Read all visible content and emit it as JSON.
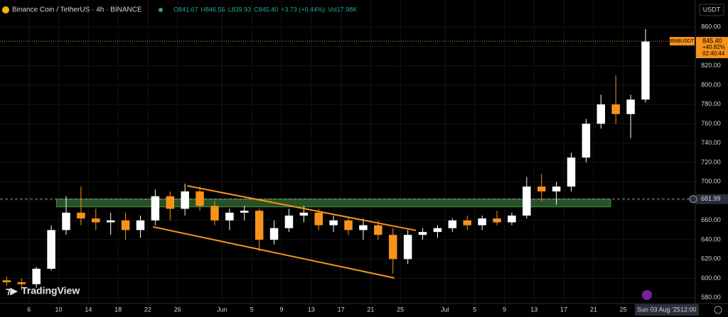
{
  "chart_data": {
    "type": "candlestick",
    "title": "Binance Coin / TetherUS · 4h · BINANCE",
    "legend_values": [
      "O841.67",
      "H846.56",
      "L839.93",
      "C845.40",
      "+3.73 (+0.44%)",
      "Vol17.98K"
    ],
    "currency": "USDT",
    "brand": "TradingView",
    "symbol": "BNBUSDT",
    "last_price": {
      "value": 845.4,
      "label": "845.40"
    },
    "change": "+40.82%",
    "countdown": "02:40:44",
    "level": {
      "value": 681.99,
      "label": "681.99"
    },
    "crosshair_date": "Sun 03 Aug '25",
    "crosshair_time": "12:00",
    "up_color": "#ffffff",
    "down_color": "#f7931a",
    "zone": {
      "x": [
        9.7,
        84.3
      ],
      "y": [
        674,
        682
      ],
      "color": "#2e5e2a"
    },
    "channel": {
      "color": "#f7931a",
      "lines": [
        {
          "x": [
            27.3,
            58.1
          ],
          "y": [
            695.8,
            649.6
          ]
        },
        {
          "x": [
            22.7,
            55.2
          ],
          "y": [
            653.3,
            600.4
          ]
        }
      ]
    },
    "x": [
      3,
      5,
      7,
      9,
      11,
      13,
      15,
      17,
      19,
      21,
      23,
      25,
      27,
      29,
      31,
      33,
      35,
      37,
      39,
      41,
      43,
      45,
      47,
      49,
      51,
      53,
      55,
      57,
      59,
      61,
      63,
      65,
      67,
      69,
      71,
      73,
      75,
      77,
      79,
      81,
      83,
      85,
      87,
      89
    ],
    "open": [
      598,
      596,
      594,
      610,
      650,
      668,
      662,
      658,
      660,
      650,
      660,
      685,
      672,
      690,
      675,
      660,
      668,
      670,
      640,
      652,
      665,
      668,
      655,
      660,
      650,
      655,
      645,
      620,
      645,
      648,
      652,
      660,
      655,
      662,
      658,
      665,
      695,
      690,
      695,
      725,
      760,
      780,
      770,
      785
    ],
    "high": [
      602,
      600,
      612,
      655,
      685,
      695,
      672,
      668,
      668,
      665,
      692,
      690,
      698,
      695,
      680,
      672,
      675,
      672,
      660,
      672,
      675,
      672,
      665,
      664,
      662,
      660,
      652,
      650,
      652,
      655,
      662,
      665,
      665,
      670,
      668,
      705,
      708,
      700,
      730,
      765,
      790,
      810,
      790,
      858
    ],
    "low": [
      592,
      588,
      590,
      608,
      645,
      655,
      650,
      645,
      640,
      642,
      655,
      660,
      665,
      670,
      655,
      650,
      660,
      628,
      635,
      648,
      658,
      650,
      648,
      645,
      640,
      640,
      605,
      615,
      640,
      642,
      648,
      650,
      650,
      655,
      655,
      662,
      680,
      676,
      690,
      720,
      755,
      760,
      745,
      782
    ],
    "close": [
      596,
      594,
      610,
      650,
      668,
      662,
      658,
      660,
      650,
      660,
      685,
      672,
      690,
      675,
      660,
      668,
      670,
      640,
      652,
      665,
      668,
      655,
      660,
      650,
      655,
      645,
      620,
      645,
      648,
      652,
      660,
      655,
      662,
      658,
      665,
      695,
      690,
      695,
      725,
      760,
      780,
      770,
      785,
      845
    ],
    "xlim": [
      2.1,
      95.7
    ],
    "xticks": [
      {
        "value": 6,
        "label": "6"
      },
      {
        "value": 10,
        "label": "10"
      },
      {
        "value": 14,
        "label": "14"
      },
      {
        "value": 18,
        "label": "18"
      },
      {
        "value": 22,
        "label": "22"
      },
      {
        "value": 26,
        "label": "26"
      },
      {
        "value": 32,
        "label": "Jun"
      },
      {
        "value": 36,
        "label": "5"
      },
      {
        "value": 40,
        "label": "9"
      },
      {
        "value": 44,
        "label": "13"
      },
      {
        "value": 48,
        "label": "17"
      },
      {
        "value": 52,
        "label": "21"
      },
      {
        "value": 56,
        "label": "25"
      },
      {
        "value": 62,
        "label": "Jul"
      },
      {
        "value": 66,
        "label": "5"
      },
      {
        "value": 70,
        "label": "9"
      },
      {
        "value": 74,
        "label": "13"
      },
      {
        "value": 78,
        "label": "17"
      },
      {
        "value": 82,
        "label": "21"
      },
      {
        "value": 86,
        "label": "25"
      }
    ],
    "ylim": [
      574,
      888
    ],
    "yticks": [
      {
        "value": 580,
        "label": "580.00"
      },
      {
        "value": 600,
        "label": "600.00"
      },
      {
        "value": 620,
        "label": "620.00"
      },
      {
        "value": 640,
        "label": "640.00"
      },
      {
        "value": 660,
        "label": "660.00"
      },
      {
        "value": 680,
        "label": "680.00"
      },
      {
        "value": 700,
        "label": "700.00"
      },
      {
        "value": 720,
        "label": "720.00"
      },
      {
        "value": 740,
        "label": "740.00"
      },
      {
        "value": 760,
        "label": "760.00"
      },
      {
        "value": 780,
        "label": "780.00"
      },
      {
        "value": 800,
        "label": "800.00"
      },
      {
        "value": 820,
        "label": "820.00"
      },
      {
        "value": 840,
        "label": "840.00"
      },
      {
        "value": 860,
        "label": "860.00"
      }
    ],
    "grid": true
  }
}
